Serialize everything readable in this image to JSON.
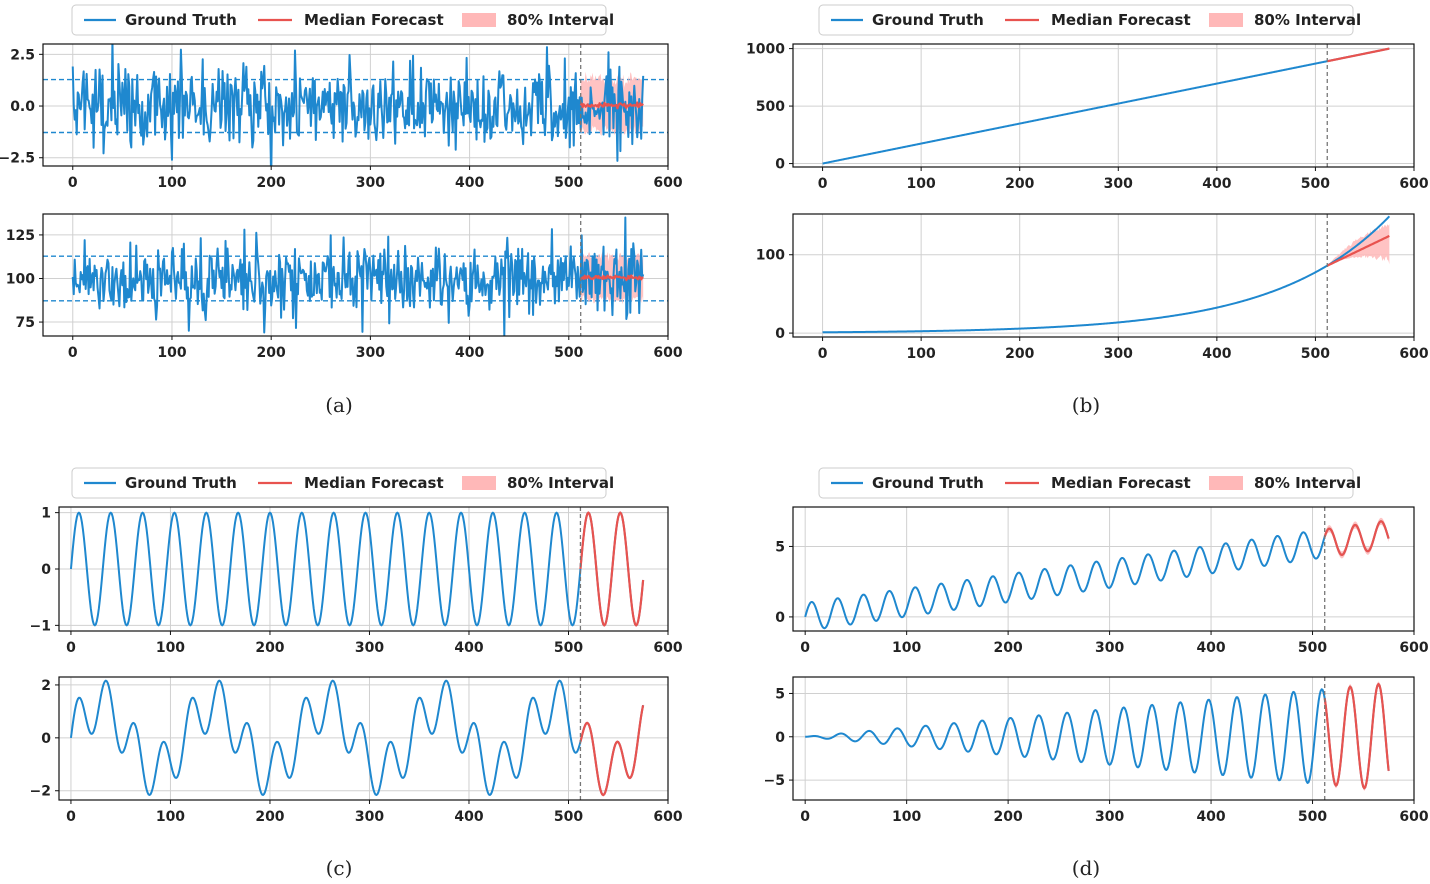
{
  "legend": {
    "ground_truth": "Ground Truth",
    "median_forecast": "Median Forecast",
    "interval": "80% Interval"
  },
  "captions": {
    "a": "(a)",
    "b": "(b)",
    "c": "(c)",
    "d": "(d)"
  },
  "colors": {
    "ground_truth": "#1f88cf",
    "forecast": "#e8534f",
    "interval": "#ffb8b8",
    "vline": "#777777",
    "grid": "#d0d0d0",
    "threshold": "#1f88cf"
  },
  "chart_data": [
    {
      "id": "a-top",
      "type": "line",
      "panel": "a",
      "title": "",
      "xlabel": "",
      "ylabel": "",
      "xlim": [
        -30,
        600
      ],
      "ylim": [
        -2.9,
        3.0
      ],
      "xticks": [
        0,
        100,
        200,
        300,
        400,
        500,
        600
      ],
      "yticks": [
        -2.5,
        0.0,
        2.5
      ],
      "ytick_labels": [
        "−2.5",
        "0.0",
        "2.5"
      ],
      "context_end": 512,
      "horizon_end": 575,
      "grid": true,
      "legend_position": "top",
      "thresholds": [
        1.28,
        -1.28
      ],
      "series": [
        {
          "name": "Ground Truth",
          "kind": "noise",
          "mean": 0,
          "std": 0.95,
          "x_range": [
            0,
            575
          ],
          "notable_points": [
            {
              "x": 478,
              "y": 2.85
            },
            {
              "x": 540,
              "y": 2.6
            },
            {
              "x": 549,
              "y": -2.65
            },
            {
              "x": 100,
              "y": -2.6
            }
          ]
        },
        {
          "name": "Median Forecast",
          "x_range": [
            512,
            575
          ],
          "level": 0.05
        },
        {
          "name": "80% Interval",
          "x_range": [
            512,
            575
          ],
          "lower": -1.2,
          "upper": 1.3
        }
      ]
    },
    {
      "id": "a-bottom",
      "type": "line",
      "panel": "a",
      "title": "",
      "xlabel": "",
      "ylabel": "",
      "xlim": [
        -30,
        600
      ],
      "ylim": [
        67,
        137
      ],
      "xticks": [
        0,
        100,
        200,
        300,
        400,
        500,
        600
      ],
      "yticks": [
        75,
        100,
        125
      ],
      "context_end": 512,
      "horizon_end": 575,
      "grid": true,
      "thresholds": [
        112.8,
        87.2
      ],
      "series": [
        {
          "name": "Ground Truth",
          "kind": "noise",
          "mean": 100,
          "std": 10,
          "x_range": [
            0,
            575
          ],
          "notable_points": [
            {
              "x": 557,
              "y": 135
            },
            {
              "x": 193,
              "y": 69
            },
            {
              "x": 117,
              "y": 70
            }
          ]
        },
        {
          "name": "Median Forecast",
          "x_range": [
            512,
            575
          ],
          "level": 100.5
        },
        {
          "name": "80% Interval",
          "x_range": [
            512,
            575
          ],
          "lower": 88,
          "upper": 113
        }
      ]
    },
    {
      "id": "b-top",
      "type": "line",
      "panel": "b",
      "title": "",
      "xlabel": "",
      "ylabel": "",
      "xlim": [
        -30,
        600
      ],
      "ylim": [
        -30,
        1040
      ],
      "xticks": [
        0,
        100,
        200,
        300,
        400,
        500,
        600
      ],
      "yticks": [
        0,
        500,
        1000
      ],
      "context_end": 512,
      "horizon_end": 575,
      "grid": true,
      "legend_position": "top",
      "series": [
        {
          "name": "Ground Truth",
          "kind": "linear",
          "x_range": [
            0,
            575
          ],
          "points": [
            [
              0,
              0
            ],
            [
              575,
              1000
            ]
          ]
        },
        {
          "name": "Median Forecast",
          "x_range": [
            512,
            575
          ],
          "points": [
            [
              512,
              890
            ],
            [
              575,
              1000
            ]
          ]
        },
        {
          "name": "80% Interval",
          "x_range": [
            512,
            575
          ],
          "lower": "-4",
          "upper": "+4"
        }
      ]
    },
    {
      "id": "b-bottom",
      "type": "line",
      "panel": "b",
      "title": "",
      "xlabel": "",
      "ylabel": "",
      "xlim": [
        -30,
        600
      ],
      "ylim": [
        -5,
        152
      ],
      "xticks": [
        0,
        100,
        200,
        300,
        400,
        500,
        600
      ],
      "yticks": [
        0,
        100
      ],
      "context_end": 512,
      "horizon_end": 575,
      "grid": true,
      "series": [
        {
          "name": "Ground Truth",
          "kind": "exponential",
          "x_range": [
            0,
            575
          ],
          "points": [
            [
              0,
              1
            ],
            [
              300,
              13
            ],
            [
              400,
              33
            ],
            [
              512,
              86
            ],
            [
              575,
              149
            ]
          ]
        },
        {
          "name": "Median Forecast",
          "x_range": [
            512,
            575
          ],
          "points": [
            [
              512,
              86
            ],
            [
              575,
              124
            ]
          ]
        },
        {
          "name": "80% Interval",
          "x_range": [
            512,
            575
          ],
          "lower_end": 87,
          "upper_end": 140
        }
      ]
    },
    {
      "id": "c-top",
      "type": "line",
      "panel": "c",
      "title": "",
      "xlabel": "",
      "ylabel": "",
      "xlim": [
        -12,
        600
      ],
      "ylim": [
        -1.1,
        1.1
      ],
      "xticks": [
        0,
        100,
        200,
        300,
        400,
        500,
        600
      ],
      "yticks": [
        -1,
        0,
        1
      ],
      "ytick_labels": [
        "−1",
        "0",
        "1"
      ],
      "context_end": 512,
      "horizon_end": 575,
      "grid": true,
      "legend_position": "top",
      "series": [
        {
          "name": "Ground Truth",
          "kind": "sine",
          "amplitude": 1,
          "period": 32,
          "x_range": [
            0,
            575
          ]
        },
        {
          "name": "Median Forecast",
          "kind": "sine",
          "amplitude": 1,
          "period": 32,
          "x_range": [
            512,
            575
          ]
        },
        {
          "name": "80% Interval",
          "x_range": [
            512,
            575
          ],
          "lower": "-0.03",
          "upper": "+0.03"
        }
      ]
    },
    {
      "id": "c-bottom",
      "type": "line",
      "panel": "c",
      "title": "",
      "xlabel": "",
      "ylabel": "",
      "xlim": [
        -12,
        600
      ],
      "ylim": [
        -2.35,
        2.3
      ],
      "xticks": [
        0,
        100,
        200,
        300,
        400,
        500,
        600
      ],
      "yticks": [
        -2,
        0,
        2
      ],
      "ytick_labels": [
        "−2",
        "0",
        "2"
      ],
      "context_end": 512,
      "horizon_end": 575,
      "grid": true,
      "series": [
        {
          "name": "Ground Truth",
          "kind": "sum_of_sines",
          "components": [
            {
              "amplitude": 1,
              "period": 28.5
            },
            {
              "amplitude": 1.25,
              "period": 114
            }
          ],
          "x_range": [
            0,
            575
          ]
        },
        {
          "name": "Median Forecast",
          "kind": "sum_of_sines",
          "x_range": [
            512,
            575
          ]
        },
        {
          "name": "80% Interval",
          "x_range": [
            512,
            575
          ],
          "lower": "-0.06",
          "upper": "+0.06"
        }
      ]
    },
    {
      "id": "d-top",
      "type": "line",
      "panel": "d",
      "title": "",
      "xlabel": "",
      "ylabel": "",
      "xlim": [
        -12,
        600
      ],
      "ylim": [
        -1.0,
        7.8
      ],
      "xticks": [
        0,
        100,
        200,
        300,
        400,
        500,
        600
      ],
      "yticks": [
        0,
        5
      ],
      "context_end": 512,
      "horizon_end": 575,
      "grid": true,
      "legend_position": "top",
      "series": [
        {
          "name": "Ground Truth",
          "kind": "trend_plus_sine",
          "slope": 0.0102,
          "amplitude": 1,
          "period": 25.5,
          "x_range": [
            0,
            575
          ]
        },
        {
          "name": "Median Forecast",
          "kind": "trend_plus_sine",
          "x_range": [
            512,
            575
          ]
        },
        {
          "name": "80% Interval",
          "x_range": [
            512,
            575
          ],
          "lower": "-0.25",
          "upper": "+0.25"
        }
      ]
    },
    {
      "id": "d-bottom",
      "type": "line",
      "panel": "d",
      "title": "",
      "xlabel": "",
      "ylabel": "",
      "xlim": [
        -12,
        600
      ],
      "ylim": [
        -7.3,
        6.9
      ],
      "xticks": [
        0,
        100,
        200,
        300,
        400,
        500,
        600
      ],
      "yticks": [
        -5,
        0,
        5
      ],
      "ytick_labels": [
        "−5",
        "0",
        "5"
      ],
      "context_end": 512,
      "horizon_end": 575,
      "grid": true,
      "series": [
        {
          "name": "Ground Truth",
          "kind": "growing_sine",
          "amplitude_end": 6.2,
          "period": 27.9,
          "x_range": [
            0,
            575
          ]
        },
        {
          "name": "Median Forecast",
          "kind": "growing_sine",
          "x_range": [
            512,
            575
          ]
        },
        {
          "name": "80% Interval",
          "x_range": [
            512,
            575
          ],
          "lower": "-0.3",
          "upper": "+0.3"
        }
      ]
    }
  ]
}
